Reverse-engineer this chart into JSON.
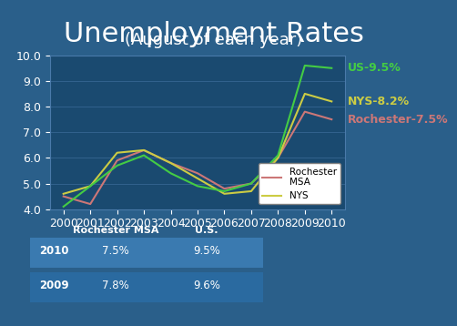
{
  "title": "Unemployment Rates",
  "subtitle": "(August of each year)",
  "years": [
    2000,
    2001,
    2002,
    2003,
    2004,
    2005,
    2006,
    2007,
    2008,
    2009,
    2010
  ],
  "rochester": [
    4.5,
    4.2,
    5.9,
    6.3,
    5.8,
    5.4,
    4.8,
    5.0,
    6.0,
    7.8,
    7.5
  ],
  "nys": [
    4.6,
    4.9,
    6.2,
    6.3,
    5.8,
    5.2,
    4.6,
    4.7,
    6.0,
    8.5,
    8.2
  ],
  "us": [
    4.1,
    4.9,
    5.7,
    6.1,
    5.4,
    4.9,
    4.7,
    5.0,
    6.1,
    9.6,
    9.5
  ],
  "rochester_color": "#cc7777",
  "nys_color": "#cccc44",
  "us_color": "#44cc44",
  "bg_color": "#2a5f8a",
  "plot_bg_color": "#1a4a70",
  "grid_color": "#4a7aaa",
  "text_color": "white",
  "ylim": [
    4.0,
    10.0
  ],
  "yticks": [
    4.0,
    5.0,
    6.0,
    7.0,
    8.0,
    9.0,
    10.0
  ],
  "label_us": "US-9.5%",
  "label_nys": "NYS-8.2%",
  "label_roc": "Rochester-7.5%",
  "table_years": [
    "2010",
    "2009"
  ],
  "table_roc": [
    "7.5%",
    "7.8%"
  ],
  "table_us": [
    "9.5%",
    "9.6%"
  ],
  "legend_labels": [
    "Rochester\nMSA",
    "NYS"
  ],
  "title_fontsize": 22,
  "subtitle_fontsize": 13,
  "axis_label_fontsize": 9,
  "annotation_fontsize": 9
}
